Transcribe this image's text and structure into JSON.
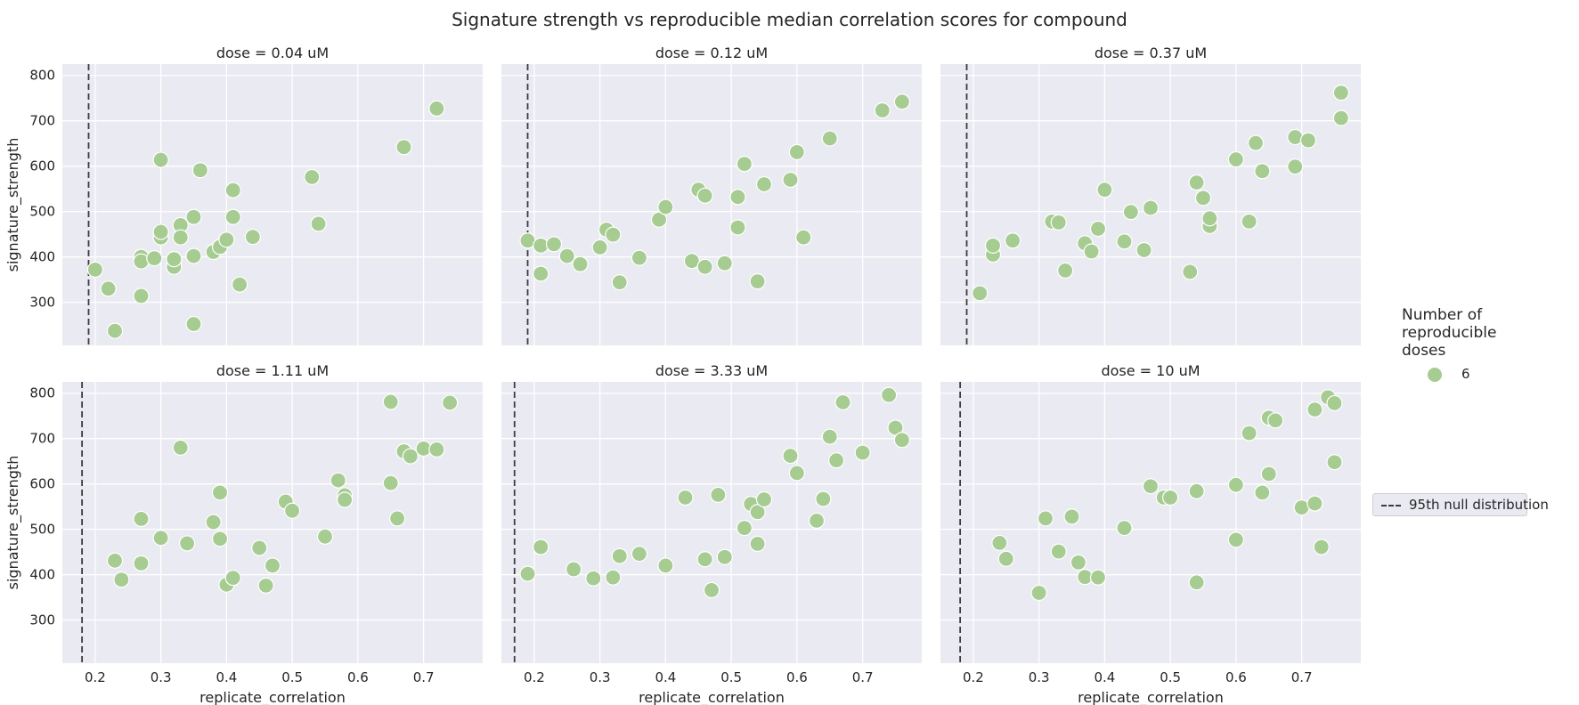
{
  "title": "Signature strength vs reproducible median correlation scores for compound",
  "legend": {
    "title": "Number of reproducible doses",
    "marker_label": "6",
    "marker_color": "#a6cc92",
    "line_label": "95th null distribution"
  },
  "chart_data": {
    "type": "scatter",
    "xlabel": "replicate_correlation",
    "ylabel": "signature_strength",
    "xlim": [
      0.15,
      0.79
    ],
    "ylim": [
      205,
      825
    ],
    "xticks": [
      "0.2",
      "0.3",
      "0.4",
      "0.5",
      "0.6",
      "0.7"
    ],
    "yticks": [
      "300",
      "400",
      "500",
      "600",
      "700",
      "800"
    ],
    "grid": true,
    "legend_position": "right",
    "panels": [
      {
        "title": "dose = 0.04 uM",
        "null_line_x": 0.19,
        "points": [
          [
            0.2,
            372
          ],
          [
            0.22,
            330
          ],
          [
            0.23,
            237
          ],
          [
            0.27,
            400
          ],
          [
            0.27,
            390
          ],
          [
            0.27,
            314
          ],
          [
            0.29,
            397
          ],
          [
            0.3,
            443
          ],
          [
            0.3,
            455
          ],
          [
            0.3,
            614
          ],
          [
            0.32,
            378
          ],
          [
            0.32,
            395
          ],
          [
            0.33,
            470
          ],
          [
            0.33,
            443
          ],
          [
            0.35,
            488
          ],
          [
            0.35,
            402
          ],
          [
            0.35,
            252
          ],
          [
            0.36,
            591
          ],
          [
            0.38,
            411
          ],
          [
            0.39,
            422
          ],
          [
            0.4,
            438
          ],
          [
            0.41,
            547
          ],
          [
            0.41,
            488
          ],
          [
            0.42,
            339
          ],
          [
            0.44,
            444
          ],
          [
            0.53,
            576
          ],
          [
            0.54,
            473
          ],
          [
            0.67,
            642
          ],
          [
            0.72,
            727
          ]
        ]
      },
      {
        "title": "dose = 0.12 uM",
        "null_line_x": 0.19,
        "points": [
          [
            0.19,
            436
          ],
          [
            0.21,
            363
          ],
          [
            0.21,
            425
          ],
          [
            0.23,
            428
          ],
          [
            0.25,
            402
          ],
          [
            0.27,
            384
          ],
          [
            0.3,
            421
          ],
          [
            0.31,
            460
          ],
          [
            0.32,
            449
          ],
          [
            0.33,
            344
          ],
          [
            0.36,
            398
          ],
          [
            0.39,
            482
          ],
          [
            0.4,
            510
          ],
          [
            0.44,
            391
          ],
          [
            0.45,
            548
          ],
          [
            0.46,
            535
          ],
          [
            0.46,
            378
          ],
          [
            0.49,
            386
          ],
          [
            0.51,
            465
          ],
          [
            0.51,
            532
          ],
          [
            0.52,
            605
          ],
          [
            0.54,
            346
          ],
          [
            0.55,
            560
          ],
          [
            0.59,
            570
          ],
          [
            0.6,
            631
          ],
          [
            0.61,
            443
          ],
          [
            0.65,
            661
          ],
          [
            0.73,
            723
          ],
          [
            0.76,
            742
          ]
        ]
      },
      {
        "title": "dose = 0.37 uM",
        "null_line_x": 0.19,
        "points": [
          [
            0.21,
            320
          ],
          [
            0.23,
            405
          ],
          [
            0.23,
            425
          ],
          [
            0.26,
            436
          ],
          [
            0.32,
            478
          ],
          [
            0.33,
            476
          ],
          [
            0.34,
            370
          ],
          [
            0.37,
            430
          ],
          [
            0.38,
            412
          ],
          [
            0.39,
            462
          ],
          [
            0.4,
            548
          ],
          [
            0.43,
            434
          ],
          [
            0.44,
            499
          ],
          [
            0.46,
            415
          ],
          [
            0.47,
            508
          ],
          [
            0.53,
            367
          ],
          [
            0.54,
            564
          ],
          [
            0.55,
            530
          ],
          [
            0.56,
            468
          ],
          [
            0.56,
            485
          ],
          [
            0.6,
            615
          ],
          [
            0.62,
            478
          ],
          [
            0.63,
            651
          ],
          [
            0.64,
            589
          ],
          [
            0.69,
            599
          ],
          [
            0.69,
            664
          ],
          [
            0.71,
            657
          ],
          [
            0.76,
            762
          ],
          [
            0.76,
            706
          ]
        ]
      },
      {
        "title": "dose = 1.11 uM",
        "null_line_x": 0.18,
        "points": [
          [
            0.23,
            431
          ],
          [
            0.24,
            389
          ],
          [
            0.27,
            523
          ],
          [
            0.27,
            425
          ],
          [
            0.3,
            481
          ],
          [
            0.33,
            680
          ],
          [
            0.34,
            469
          ],
          [
            0.38,
            516
          ],
          [
            0.39,
            581
          ],
          [
            0.39,
            479
          ],
          [
            0.4,
            378
          ],
          [
            0.41,
            393
          ],
          [
            0.45,
            459
          ],
          [
            0.46,
            376
          ],
          [
            0.47,
            420
          ],
          [
            0.49,
            561
          ],
          [
            0.5,
            541
          ],
          [
            0.55,
            484
          ],
          [
            0.57,
            608
          ],
          [
            0.58,
            575
          ],
          [
            0.58,
            565
          ],
          [
            0.65,
            602
          ],
          [
            0.65,
            781
          ],
          [
            0.66,
            524
          ],
          [
            0.67,
            672
          ],
          [
            0.68,
            661
          ],
          [
            0.7,
            678
          ],
          [
            0.72,
            676
          ],
          [
            0.74,
            779
          ]
        ]
      },
      {
        "title": "dose = 3.33 uM",
        "null_line_x": 0.17,
        "points": [
          [
            0.19,
            402
          ],
          [
            0.21,
            461
          ],
          [
            0.26,
            412
          ],
          [
            0.29,
            392
          ],
          [
            0.32,
            394
          ],
          [
            0.33,
            441
          ],
          [
            0.36,
            446
          ],
          [
            0.4,
            420
          ],
          [
            0.43,
            570
          ],
          [
            0.46,
            434
          ],
          [
            0.47,
            366
          ],
          [
            0.48,
            576
          ],
          [
            0.49,
            439
          ],
          [
            0.52,
            503
          ],
          [
            0.53,
            556
          ],
          [
            0.54,
            468
          ],
          [
            0.54,
            538
          ],
          [
            0.55,
            566
          ],
          [
            0.59,
            662
          ],
          [
            0.6,
            624
          ],
          [
            0.63,
            519
          ],
          [
            0.64,
            567
          ],
          [
            0.65,
            704
          ],
          [
            0.66,
            652
          ],
          [
            0.67,
            780
          ],
          [
            0.7,
            669
          ],
          [
            0.74,
            796
          ],
          [
            0.75,
            724
          ],
          [
            0.76,
            697
          ]
        ]
      },
      {
        "title": "dose = 10 uM",
        "null_line_x": 0.18,
        "points": [
          [
            0.24,
            470
          ],
          [
            0.25,
            435
          ],
          [
            0.3,
            360
          ],
          [
            0.31,
            524
          ],
          [
            0.33,
            451
          ],
          [
            0.35,
            528
          ],
          [
            0.36,
            427
          ],
          [
            0.37,
            395
          ],
          [
            0.39,
            394
          ],
          [
            0.43,
            503
          ],
          [
            0.47,
            595
          ],
          [
            0.49,
            570
          ],
          [
            0.5,
            570
          ],
          [
            0.54,
            584
          ],
          [
            0.54,
            383
          ],
          [
            0.6,
            598
          ],
          [
            0.6,
            477
          ],
          [
            0.62,
            712
          ],
          [
            0.64,
            581
          ],
          [
            0.65,
            622
          ],
          [
            0.65,
            746
          ],
          [
            0.66,
            740
          ],
          [
            0.7,
            548
          ],
          [
            0.72,
            557
          ],
          [
            0.72,
            764
          ],
          [
            0.73,
            461
          ],
          [
            0.74,
            791
          ],
          [
            0.75,
            778
          ],
          [
            0.75,
            648
          ]
        ]
      }
    ]
  }
}
